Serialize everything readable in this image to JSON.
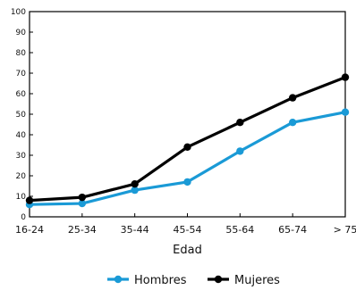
{
  "chart_data": {
    "type": "line",
    "categories": [
      "16-24",
      "25-34",
      "35-44",
      "45-54",
      "55-64",
      "65-74",
      "> 75"
    ],
    "series": [
      {
        "name": "Hombres",
        "color": "#1a9ad6",
        "values": [
          6,
          6.5,
          13,
          17,
          32,
          46,
          51
        ]
      },
      {
        "name": "Mujeres",
        "color": "#000000",
        "values": [
          8,
          9.5,
          16,
          34,
          46,
          58,
          68
        ]
      }
    ],
    "xlabel": "Edad",
    "ylabel": "",
    "ylim": [
      0,
      100
    ],
    "yticks": [
      0,
      10,
      20,
      30,
      40,
      50,
      60,
      70,
      80,
      90,
      100
    ],
    "grid": false,
    "legend": "bottom-center"
  }
}
